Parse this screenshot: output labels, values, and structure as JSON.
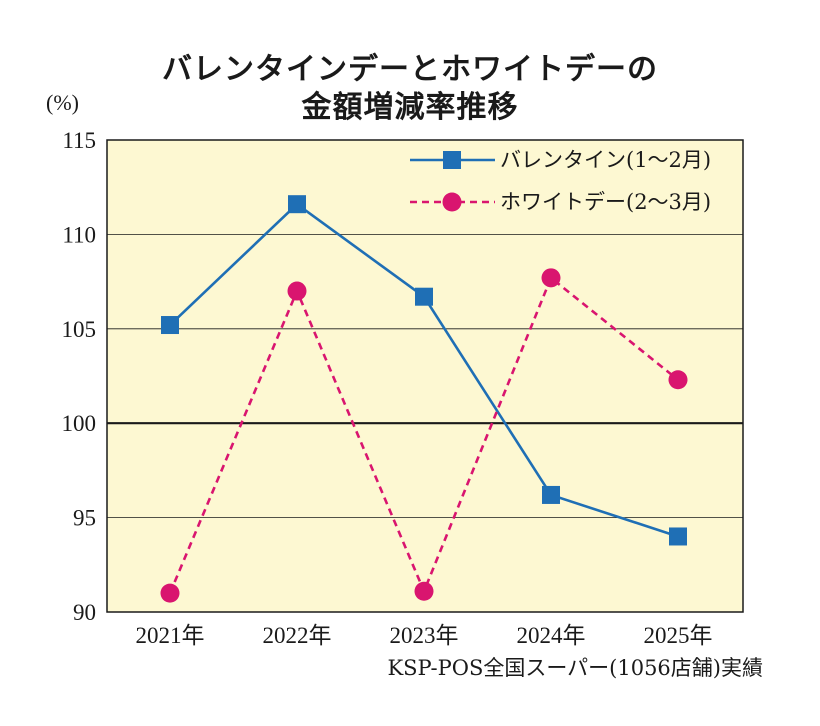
{
  "title_line1": "バレンタインデーとホワイトデーの",
  "title_line2": "金額増減率推移",
  "y_unit": "(%)",
  "source": "KSP-POS全国スーパー(1056店舗)実績",
  "colors": {
    "plot_background": "#fdf8d2",
    "series_valentine": "#1f6fb5",
    "series_whiteday": "#d9156f",
    "grid": "#1a1a1a"
  },
  "chart_data": {
    "type": "line",
    "categories": [
      "2021年",
      "2022年",
      "2023年",
      "2024年",
      "2025年"
    ],
    "ylim": [
      90,
      115
    ],
    "yticks": [
      90,
      95,
      100,
      105,
      110,
      115
    ],
    "grid": true,
    "legend_position": "top-right",
    "series": [
      {
        "name": "バレンタイン(1〜2月)",
        "values": [
          105.2,
          111.6,
          106.7,
          96.2,
          94.0
        ],
        "color": "#1f6fb5",
        "marker": "square",
        "line_style": "solid"
      },
      {
        "name": "ホワイトデー(2〜3月)",
        "values": [
          91.0,
          107.0,
          91.1,
          107.7,
          102.3
        ],
        "color": "#d9156f",
        "marker": "circle",
        "line_style": "dashed"
      }
    ]
  }
}
